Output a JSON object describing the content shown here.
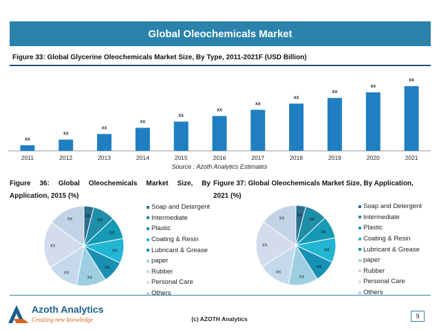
{
  "header": {
    "title": "Global Oleochemicals Market"
  },
  "figure33": {
    "title": "Figure 33: Global Glycerine Oleochemicals Market Size, By Type, 2011-2021F (USD Billion)",
    "source": "Source : Azoth Analytics Estimates"
  },
  "figure36": {
    "title_line1": "Figure 36: Global Oleochemicals Market Size, By",
    "title_line2": "Application, 2015 (%)"
  },
  "figure37": {
    "title_line1": "Figure 37: Global Oleochemicals Market Size, By Application,",
    "title_line2": "2021 (%)"
  },
  "colors": {
    "header": "#2b83ac",
    "bar": "#1f7fc2",
    "pie": [
      "#2b6f8f",
      "#1f8ea8",
      "#1599b5",
      "#22b6d4",
      "#1790b3",
      "#9ecfe0",
      "#c4d9ec",
      "#d3dcec",
      "#c2d3e6"
    ]
  },
  "chart_data": [
    {
      "type": "bar",
      "title": "Figure 33: Global Glycerine Oleochemicals Market Size, By Type, 2011-2021F (USD Billion)",
      "categories": [
        "2011",
        "2012",
        "2013",
        "2014",
        "2015",
        "2016",
        "2017",
        "2018",
        "2019",
        "2020",
        "2021"
      ],
      "values": [
        1.0,
        2.0,
        3.0,
        4.1,
        5.2,
        6.2,
        7.3,
        8.4,
        9.4,
        10.4,
        11.5
      ],
      "data_labels": [
        "xx",
        "xx",
        "xx",
        "xx",
        "xx",
        "xx",
        "xx",
        "xx",
        "xx",
        "xx",
        "xx"
      ],
      "ylim": [
        0,
        12
      ],
      "grid": false,
      "legend": "none"
    },
    {
      "type": "pie",
      "title": "Figure 36: Global Oleochemicals Market Size, By Application, 2015 (%)",
      "labels": [
        "Soap and Detergent",
        "Intermediate",
        "Plastic",
        "Coating & Resin",
        "Lubricant & Grease",
        "paper",
        "Rubber",
        "Personal Care",
        "Others"
      ],
      "values": [
        4,
        9,
        9,
        10,
        9,
        12,
        13,
        19,
        15
      ],
      "data_labels": [
        "xx",
        "xx",
        "xx",
        "xx",
        "xx",
        "xx",
        "xx",
        "xx",
        "xx"
      ],
      "legend": "right"
    },
    {
      "type": "pie",
      "title": "Figure 37: Global Oleochemicals Market Size, By Application, 2021 (%)",
      "labels": [
        "Soap and Detergent",
        "Intermediate",
        "Plastic",
        "Coating & Resin",
        "Lubricant & Grease",
        "paper",
        "Rubber",
        "Personal Care",
        "Others"
      ],
      "values": [
        4,
        9,
        9,
        10,
        9,
        12,
        13,
        19,
        15
      ],
      "data_labels": [
        "xx",
        "xx",
        "xx",
        "xx",
        "xx",
        "xx",
        "xx",
        "xx",
        "xx"
      ],
      "legend": "right"
    }
  ],
  "footer": {
    "logo_name": "Azoth Analytics",
    "logo_tagline": "Creating new knowledge",
    "copyright": "(c) AZOTH Analytics",
    "page_number": "9"
  }
}
